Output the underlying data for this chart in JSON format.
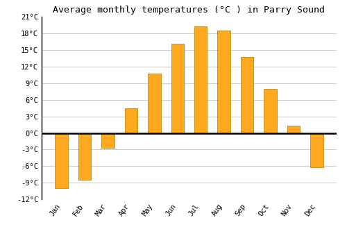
{
  "title": "Average monthly temperatures (°C ) in Parry Sound",
  "months": [
    "Jan",
    "Feb",
    "Mar",
    "Apr",
    "May",
    "Jun",
    "Jul",
    "Aug",
    "Sep",
    "Oct",
    "Nov",
    "Dec"
  ],
  "temperatures": [
    -10.0,
    -8.5,
    -2.7,
    4.5,
    10.8,
    16.2,
    19.3,
    18.5,
    13.8,
    8.0,
    1.3,
    -6.2
  ],
  "bar_color": "#FFA920",
  "bar_edge_color": "#C8860A",
  "background_color": "#FFFFFF",
  "grid_color": "#CCCCCC",
  "ylim": [
    -12,
    21
  ],
  "yticks": [
    -12,
    -9,
    -6,
    -3,
    0,
    3,
    6,
    9,
    12,
    15,
    18,
    21
  ],
  "title_fontsize": 9.5,
  "tick_fontsize": 7.5,
  "bar_width": 0.55
}
